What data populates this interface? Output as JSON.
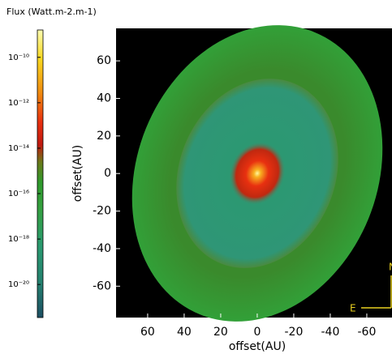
{
  "chart_data": {
    "type": "image",
    "colorbar_label": "Flux (Watt.m-2.m-1)",
    "clim": [
      3.5e-22,
      1.6e-09
    ],
    "log": true,
    "cticks": [
      {
        "value": 1e-10,
        "label": "10⁻¹⁰"
      },
      {
        "value": 1e-12,
        "label": "10⁻¹²"
      },
      {
        "value": 1e-14,
        "label": "10⁻¹⁴"
      },
      {
        "value": 1e-16,
        "label": "10⁻¹⁶"
      },
      {
        "value": 1e-18,
        "label": "10⁻¹⁸"
      },
      {
        "value": 1e-20,
        "label": "10⁻²⁰"
      }
    ],
    "xlabel": "offset(AU)",
    "ylabel": "offset(AU)",
    "xlim": [
      77.3,
      -73.8
    ],
    "ylim": [
      -76.7,
      77.3
    ],
    "xticks": [
      60,
      40,
      20,
      0,
      -20,
      -40,
      -60
    ],
    "yticks": [
      60,
      40,
      20,
      0,
      -20,
      -40,
      -60
    ],
    "compass": {
      "north": "N",
      "east": "E"
    }
  }
}
